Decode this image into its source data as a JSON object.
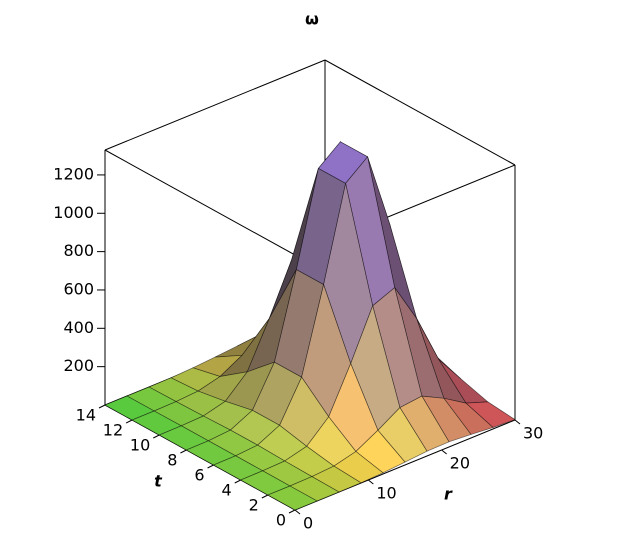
{
  "chart_data": {
    "type": "surface",
    "title": "ω",
    "xlabel": "r",
    "ylabel": "t",
    "r": [
      0,
      3,
      6,
      9,
      12,
      15,
      18,
      21,
      24,
      27,
      30
    ],
    "t": [
      0,
      2,
      4,
      6,
      8,
      10,
      12,
      14
    ],
    "z": [
      [
        0,
        0,
        0,
        1,
        6,
        15,
        25,
        27,
        19,
        8,
        2
      ],
      [
        0,
        0,
        2,
        10,
        39,
        103,
        174,
        187,
        129,
        57,
        16
      ],
      [
        0,
        1,
        5,
        35,
        142,
        373,
        627,
        675,
        466,
        206,
        59
      ],
      [
        0,
        1,
        10,
        66,
        270,
        706,
        1187,
        1279,
        883,
        391,
        111
      ],
      [
        0,
        1,
        10,
        66,
        270,
        706,
        1187,
        1279,
        883,
        391,
        111
      ],
      [
        0,
        1,
        5,
        35,
        142,
        373,
        627,
        675,
        466,
        206,
        59
      ],
      [
        0,
        0,
        2,
        10,
        39,
        103,
        174,
        187,
        129,
        57,
        16
      ],
      [
        0,
        0,
        0,
        1,
        6,
        15,
        25,
        27,
        19,
        8,
        2
      ]
    ],
    "xlim": [
      0,
      30
    ],
    "ylim": [
      0,
      14
    ],
    "zlim": [
      0,
      1330
    ],
    "xticks": [
      0,
      10,
      20,
      30
    ],
    "yticks": [
      0,
      2,
      4,
      6,
      8,
      10,
      12,
      14
    ],
    "zticks": [
      200,
      400,
      600,
      800,
      1000,
      1200
    ]
  }
}
